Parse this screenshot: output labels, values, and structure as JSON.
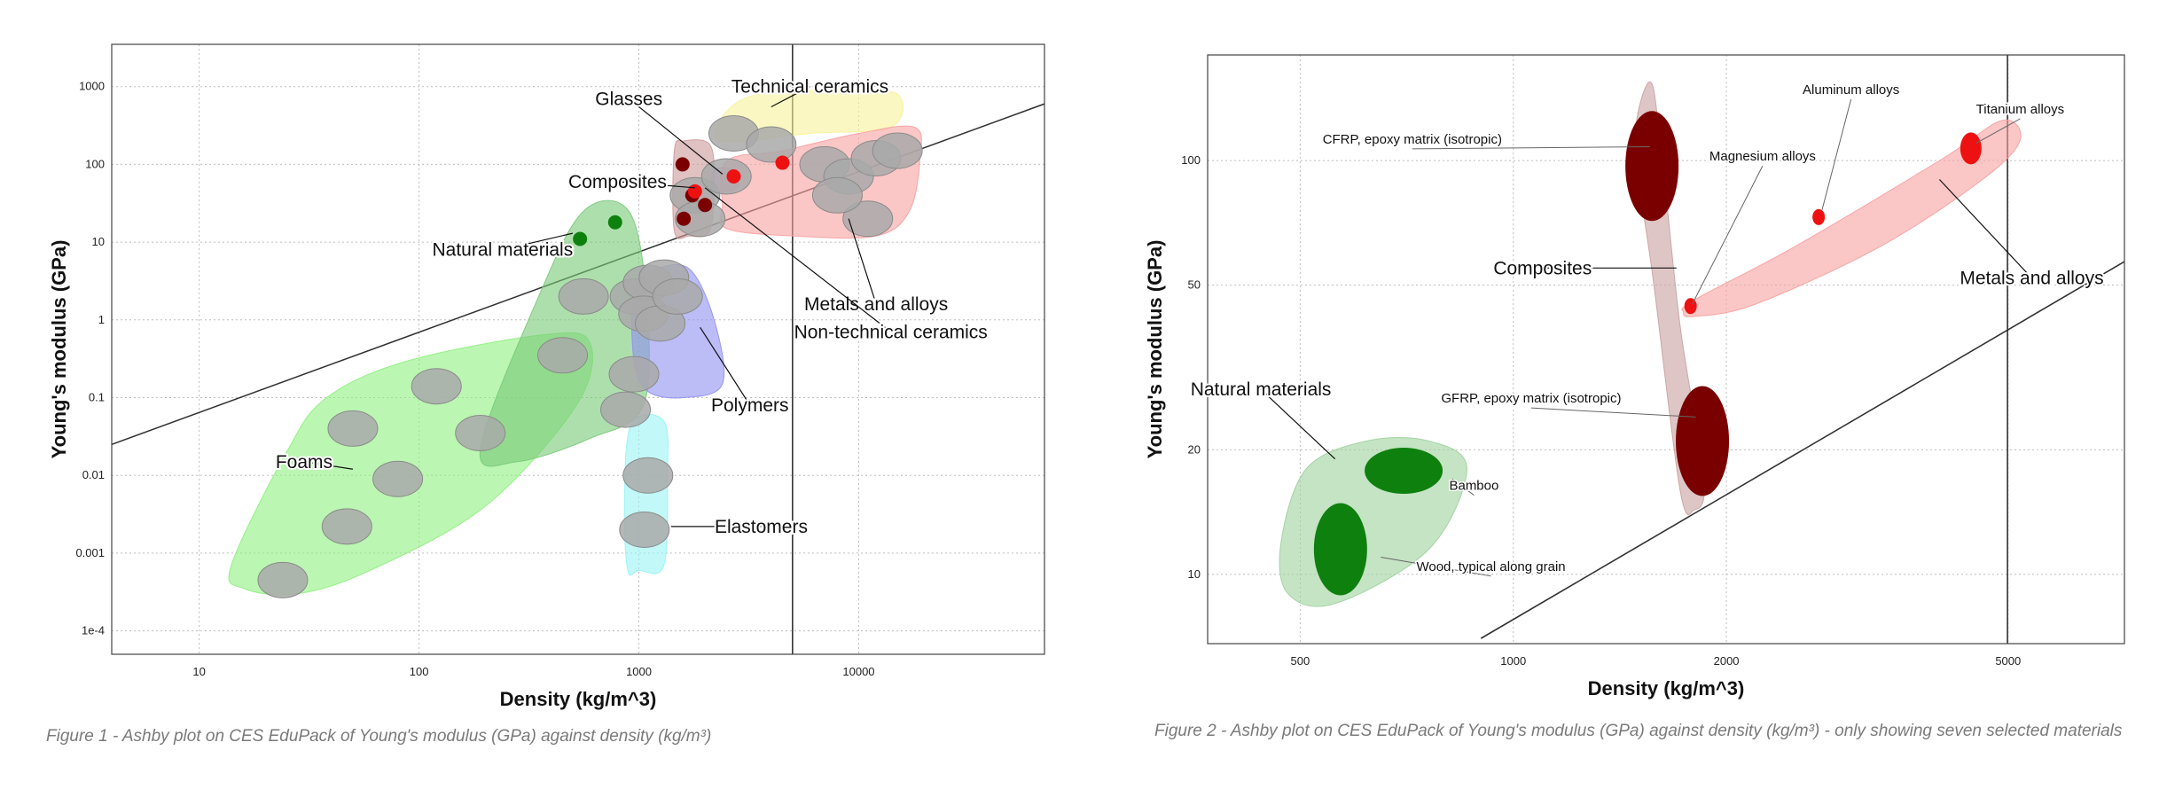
{
  "figures": [
    {
      "caption": "Figure 1 - Ashby plot on CES EduPack of Young's modulus (GPa) against density (kg/m³)"
    },
    {
      "caption": "Figure 2 - Ashby plot on CES EduPack of Young's modulus (GPa) against density (kg/m³) - only showing seven selected materials"
    }
  ],
  "chart_data": [
    {
      "type": "scatter",
      "xscale": "log",
      "yscale": "log",
      "xlabel": "Density (kg/m^3)",
      "ylabel": "Young's modulus (GPa)",
      "xlim": [
        4,
        70000
      ],
      "ylim": [
        5e-05,
        3500
      ],
      "xticks": [
        10,
        100,
        1000,
        10000
      ],
      "xtick_labels": [
        "10",
        "100",
        "1000",
        "10000"
      ],
      "yticks": [
        0.0001,
        0.001,
        0.01,
        0.1,
        1,
        10,
        100,
        1000
      ],
      "ytick_labels": [
        "1e-4",
        "0.001",
        "0.01",
        "0.1",
        "1",
        "10",
        "100",
        "1000"
      ],
      "grid": true,
      "reference_line": {
        "x": [
          4,
          70000
        ],
        "y": [
          0.025,
          600
        ]
      },
      "vertical_line_x": 5000,
      "families": [
        {
          "label": "Foams",
          "fill": "#8ef07e",
          "envelope": [
            [
              16,
              0.00035
            ],
            [
              14,
              0.0007
            ],
            [
              25,
              0.02
            ],
            [
              38,
              0.1
            ],
            [
              90,
              0.3
            ],
            [
              380,
              0.65
            ],
            [
              600,
              0.5
            ],
            [
              520,
              0.08
            ],
            [
              200,
              0.004
            ],
            [
              60,
              0.0006
            ],
            [
              28,
              0.0003
            ]
          ],
          "members": [
            [
              24,
              0.00045
            ],
            [
              47,
              0.0022
            ],
            [
              80,
              0.009
            ],
            [
              50,
              0.04
            ],
            [
              120,
              0.14
            ],
            [
              450,
              0.35
            ],
            [
              190,
              0.035
            ]
          ],
          "label_xy": [
            30,
            0.015
          ],
          "arrow_to": [
            50,
            0.012
          ]
        },
        {
          "label": "Natural materials",
          "fill": "#77c977",
          "envelope": [
            [
              190,
              0.022
            ],
            [
              350,
              2
            ],
            [
              560,
              25
            ],
            [
              900,
              25
            ],
            [
              1080,
              2
            ],
            [
              1050,
              0.08
            ],
            [
              600,
              0.03
            ],
            [
              280,
              0.015
            ]
          ],
          "members": [
            [
              560,
              2
            ],
            [
              960,
              2
            ],
            [
              950,
              0.2
            ],
            [
              870,
              0.07
            ]
          ],
          "highlights": [
            [
              540,
              11
            ],
            [
              780,
              18
            ]
          ],
          "label_xy": [
            240,
            8
          ],
          "arrow_to": [
            500,
            13
          ]
        },
        {
          "label": "Polymers",
          "fill": "#8f8ff2",
          "envelope": [
            [
              950,
              0.3
            ],
            [
              950,
              2.5
            ],
            [
              1200,
              4.5
            ],
            [
              1700,
              4.5
            ],
            [
              2200,
              1
            ],
            [
              2400,
              0.15
            ],
            [
              1600,
              0.1
            ],
            [
              1100,
              0.12
            ]
          ],
          "members": [
            [
              1100,
              3
            ],
            [
              1300,
              3.5
            ],
            [
              1050,
              1.2
            ],
            [
              1250,
              0.9
            ],
            [
              1500,
              2
            ]
          ],
          "label_xy": [
            3200,
            0.08
          ],
          "arrow_to": [
            1900,
            0.8
          ]
        },
        {
          "label": "Elastomers",
          "fill": "#99f3f3",
          "envelope": [
            [
              890,
              0.0006
            ],
            [
              860,
              0.004
            ],
            [
              920,
              0.045
            ],
            [
              1300,
              0.05
            ],
            [
              1350,
              0.01
            ],
            [
              1300,
              0.0007
            ],
            [
              1000,
              0.0006
            ]
          ],
          "members": [
            [
              1100,
              0.01
            ],
            [
              1060,
              0.002
            ]
          ],
          "label_xy": [
            3600,
            0.0022
          ],
          "arrow_to": [
            1400,
            0.0022
          ]
        },
        {
          "label": "Composites",
          "fill": "#cc9999",
          "envelope": [
            [
              1450,
              14
            ],
            [
              1450,
              150
            ],
            [
              1600,
              200
            ],
            [
              2100,
              180
            ],
            [
              2200,
              60
            ],
            [
              2100,
              14
            ],
            [
              1700,
              12
            ]
          ],
          "members": [
            [
              1800,
              40
            ],
            [
              1900,
              20
            ]
          ],
          "highlights": [
            [
              1580,
              100
            ],
            [
              1600,
              20
            ],
            [
              1750,
              40
            ],
            [
              2000,
              30
            ]
          ],
          "label_xy": [
            800,
            60
          ],
          "arrow_to": [
            1800,
            50
          ]
        },
        {
          "label": "Glasses",
          "fill": "#d98ad9",
          "envelope": [
            [
              2200,
              45
            ],
            [
              2200,
              85
            ],
            [
              2700,
              85
            ],
            [
              2800,
              50
            ]
          ],
          "members": [
            [
              2500,
              70
            ]
          ],
          "label_xy": [
            900,
            700
          ],
          "arrow_to": [
            2400,
            75
          ]
        },
        {
          "label": "Technical ceramics",
          "fill": "#f7f29a",
          "envelope": [
            [
              2300,
              200
            ],
            [
              3000,
              700
            ],
            [
              8000,
              900
            ],
            [
              15000,
              800
            ],
            [
              14000,
              300
            ],
            [
              6000,
              250
            ]
          ],
          "members": [
            [
              2700,
              250
            ],
            [
              4000,
              180
            ]
          ],
          "label_xy": [
            6000,
            1000
          ],
          "arrow_to": [
            4000,
            550
          ]
        },
        {
          "label": "Metals and alloys",
          "fill": "#f7a0a0",
          "envelope": [
            [
              2400,
              30
            ],
            [
              2500,
              110
            ],
            [
              4500,
              150
            ],
            [
              10000,
              250
            ],
            [
              18000,
              300
            ],
            [
              19000,
              120
            ],
            [
              17000,
              25
            ],
            [
              12000,
              12
            ],
            [
              5000,
              12
            ],
            [
              2500,
              15
            ]
          ],
          "members": [
            [
              7000,
              100
            ],
            [
              9000,
              70
            ],
            [
              12000,
              120
            ],
            [
              15000,
              150
            ],
            [
              11000,
              20
            ],
            [
              8000,
              40
            ]
          ],
          "highlights": [
            [
              4500,
              105
            ],
            [
              2700,
              70
            ],
            [
              1800,
              45
            ]
          ],
          "label_xy": [
            12000,
            1.6
          ],
          "arrow_to": [
            9000,
            20
          ]
        },
        {
          "label": "Non-technical ceramics",
          "label_xy": [
            14000,
            0.7
          ],
          "arrow_to": [
            2000,
            50
          ]
        }
      ]
    },
    {
      "type": "scatter",
      "xscale": "log",
      "yscale": "log",
      "xlabel": "Density (kg/m^3)",
      "ylabel": "Young's modulus (GPa)",
      "xlim": [
        370,
        7300
      ],
      "ylim": [
        6.8,
        180
      ],
      "xticks": [
        500,
        1000,
        2000,
        5000
      ],
      "xtick_labels": [
        "500",
        "1000",
        "2000",
        "5000"
      ],
      "yticks": [
        10,
        20,
        50,
        100
      ],
      "ytick_labels": [
        "10",
        "20",
        "50",
        "100"
      ],
      "grid": true,
      "reference_line": {
        "x": [
          900,
          7300
        ],
        "y": [
          7,
          57
        ]
      },
      "vertical_line_x": 4990,
      "families": [
        {
          "label": "Natural materials",
          "fill": "#9cd29c",
          "envelope": [
            [
              470,
              12
            ],
            [
              510,
              18
            ],
            [
              620,
              21
            ],
            [
              760,
              21
            ],
            [
              860,
              18
            ],
            [
              760,
              11.5
            ],
            [
              560,
              8.5
            ],
            [
              480,
              9
            ]
          ],
          "label_xy": [
            440,
            28
          ],
          "arrow_to": [
            560,
            19
          ]
        },
        {
          "label": "Composites",
          "fill": "#c9a0a0",
          "envelope": [
            [
              1490,
              120
            ],
            [
              1560,
              155
            ],
            [
              1610,
              115
            ],
            [
              1720,
              40
            ],
            [
              1860,
              17
            ],
            [
              1800,
              14.3
            ],
            [
              1720,
              16
            ],
            [
              1580,
              50
            ],
            [
              1520,
              80
            ]
          ],
          "label_xy": [
            1100,
            55
          ],
          "arrow_to": [
            1700,
            55
          ]
        },
        {
          "label": "Metals and alloys",
          "fill": "#f7a0a0",
          "envelope": [
            [
              1740,
              43
            ],
            [
              1800,
              46
            ],
            [
              2500,
              62
            ],
            [
              4000,
              100
            ],
            [
              4900,
              125
            ],
            [
              5200,
              112
            ],
            [
              4600,
              90
            ],
            [
              3300,
              62
            ],
            [
              2200,
              45
            ],
            [
              1800,
              42
            ]
          ],
          "label_xy": [
            5400,
            52
          ],
          "arrow_to": [
            4000,
            90
          ]
        }
      ],
      "materials": [
        {
          "label": "CFRP, epoxy matrix (isotropic)",
          "x": 1570,
          "y": 97,
          "color": "#7a0000",
          "label_xy": [
            720,
            110
          ],
          "arrow_to": [
            1560,
            108
          ]
        },
        {
          "label": "Magnesium alloys",
          "x": 1780,
          "y": 44.5,
          "color": "#ee1111",
          "label_xy": [
            2250,
            100
          ],
          "arrow_to": [
            1790,
            45
          ]
        },
        {
          "label": "Aluminum alloys",
          "x": 2700,
          "y": 73,
          "color": "#ee1111",
          "label_xy": [
            3000,
            145
          ],
          "arrow_to": [
            2730,
            76
          ]
        },
        {
          "label": "Titanium alloys",
          "x": 4430,
          "y": 107,
          "color": "#ee1111",
          "label_xy": [
            5200,
            130
          ],
          "arrow_to": [
            4500,
            110
          ]
        },
        {
          "label": "GFRP, epoxy matrix (isotropic)",
          "x": 1850,
          "y": 21,
          "color": "#7a0000",
          "label_xy": [
            1060,
            26
          ],
          "arrow_to": [
            1810,
            24
          ]
        },
        {
          "label": "Bamboo",
          "x": 700,
          "y": 17.8,
          "color": "#0e800e",
          "label_xy": [
            880,
            16
          ],
          "arrow_to": [
            820,
            17
          ]
        },
        {
          "label": "Wood, typical along grain",
          "x": 570,
          "y": 11.5,
          "color": "#0e800e",
          "label_xy": [
            930,
            10.2
          ],
          "arrow_to": [
            650,
            11
          ]
        }
      ]
    }
  ]
}
